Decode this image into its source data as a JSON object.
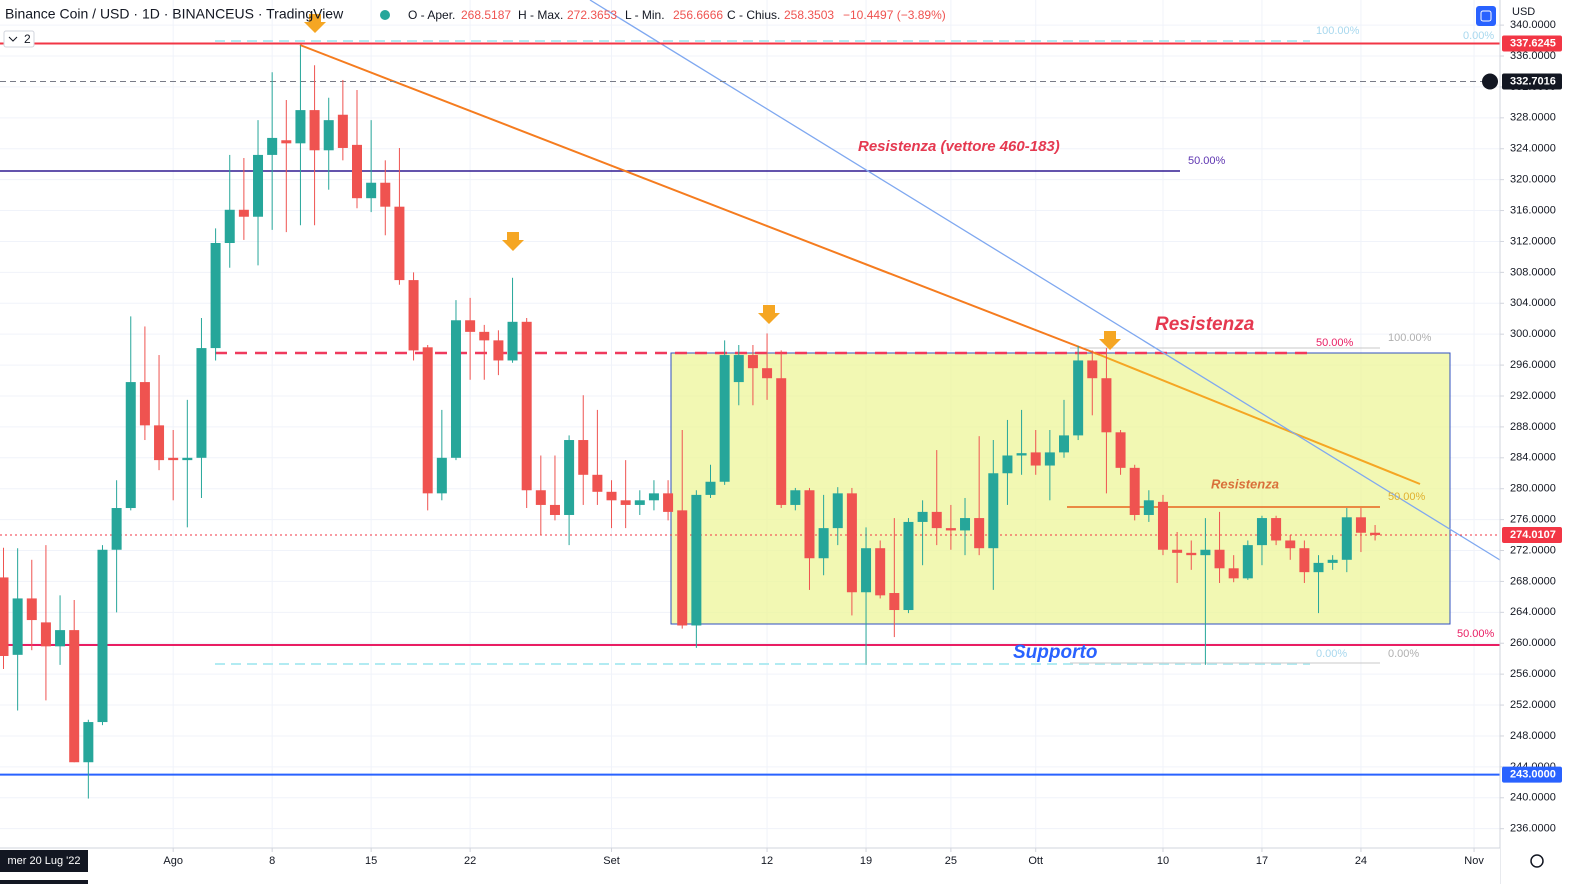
{
  "header": {
    "title": "Binance Coin / USD · 1D · BINANCEUS · TradingView",
    "open_label": "O - Aper.",
    "high_label": "H - Max.",
    "low_label": "L - Min.",
    "close_label": "C - Chius.",
    "change": "−10.4497 (−3.89%)",
    "currency": "USD",
    "indicator_count": "2",
    "crosshair_date": "mer 20 Lug '22"
  },
  "chart_data": {
    "type": "candlestick",
    "up_color": "#26a69a",
    "down_color": "#ef5350",
    "grid": true,
    "categories": [
      null,
      null,
      null,
      null,
      null,
      null,
      null,
      null,
      null,
      null,
      null,
      null,
      "Ago",
      null,
      null,
      null,
      null,
      null,
      null,
      "8",
      null,
      null,
      null,
      null,
      null,
      null,
      "15",
      null,
      null,
      null,
      null,
      null,
      null,
      "22",
      null,
      null,
      null,
      null,
      null,
      null,
      null,
      null,
      null,
      "Set",
      null,
      null,
      null,
      null,
      null,
      null,
      null,
      null,
      null,
      null,
      "12",
      null,
      null,
      null,
      null,
      null,
      null,
      "19",
      null,
      null,
      null,
      null,
      null,
      "25",
      null,
      null,
      null,
      null,
      null,
      "Ott",
      null,
      null,
      null,
      null,
      null,
      null,
      null,
      null,
      "10",
      null,
      null,
      null,
      null,
      null,
      null,
      "17",
      null,
      null,
      null,
      null,
      null,
      null,
      "24",
      null,
      null,
      null,
      null,
      null,
      null,
      null,
      "Nov"
    ],
    "open": [
      268.5187,
      258.5,
      265.8,
      262.7,
      259.6,
      261.7,
      244.6,
      249.8,
      272.1,
      277.5,
      293.8,
      288.2,
      284.0,
      283.7,
      284.0,
      298.2,
      311.8,
      316.1,
      315.2,
      323.2,
      325.1,
      324.7,
      329.0,
      323.8,
      328.4,
      324.5,
      317.6,
      319.6,
      316.5,
      307.0,
      298.3,
      279.4,
      284.0,
      301.8,
      300.3,
      299.2,
      296.6,
      301.6,
      279.8,
      277.9,
      276.6,
      286.3,
      281.8,
      279.6,
      278.5,
      277.9,
      278.5,
      279.4,
      277.2,
      262.3,
      279.2,
      280.9,
      293.8,
      297.3,
      295.6,
      294.3,
      277.9,
      279.8,
      271.0,
      274.9,
      279.4,
      266.6,
      272.3,
      266.5,
      264.3,
      275.7,
      277.0,
      274.9,
      274.6,
      276.2,
      272.3,
      282.0,
      284.3,
      284.7,
      283.0,
      284.7,
      286.9,
      296.6,
      294.3,
      287.3,
      282.7,
      276.6,
      278.3,
      272.1,
      271.7,
      271.4,
      272.1,
      269.7,
      268.4,
      272.7,
      276.2,
      273.3,
      272.3,
      269.2,
      270.4,
      270.8,
      276.3,
      274.3,
      null,
      null,
      null,
      null,
      null,
      null,
      null
    ],
    "high": [
      272.3653,
      272.3,
      270.8,
      272.7,
      266.2,
      265.6,
      250.1,
      272.7,
      281.1,
      302.3,
      301.0,
      297.3,
      287.6,
      291.5,
      302.1,
      313.7,
      323.2,
      322.8,
      327.7,
      333.9,
      330.3,
      337.4,
      334.8,
      330.6,
      332.9,
      331.6,
      327.7,
      322.5,
      324.1,
      308.0,
      298.6,
      290.2,
      304.4,
      304.7,
      301.2,
      300.5,
      307.3,
      302.1,
      284.3,
      284.3,
      286.9,
      292.1,
      290.2,
      281.1,
      283.7,
      279.8,
      281.1,
      281.1,
      287.6,
      279.8,
      283.1,
      299.2,
      298.6,
      298.6,
      300.1,
      297.9,
      280.1,
      280.1,
      279.2,
      280.2,
      280.1,
      275.0,
      273.3,
      276.2,
      276.2,
      278.5,
      285.0,
      277.9,
      278.8,
      286.8,
      286.3,
      288.9,
      290.2,
      287.6,
      287.6,
      291.5,
      298.5,
      297.9,
      298.2,
      287.6,
      283.1,
      279.8,
      279.2,
      274.4,
      273.3,
      276.2,
      277.0,
      271.4,
      273.3,
      276.5,
      276.5,
      274.0,
      273.3,
      271.4,
      271.4,
      277.5,
      277.5,
      275.3,
      null,
      null,
      null,
      null,
      null,
      null,
      null
    ],
    "low": [
      256.6666,
      251.3,
      259.1,
      252.6,
      257.2,
      244.6,
      239.9,
      249.4,
      264.0,
      277.2,
      286.3,
      282.4,
      278.5,
      275.0,
      278.8,
      296.6,
      308.6,
      312.2,
      308.9,
      313.5,
      313.2,
      314.1,
      314.1,
      318.7,
      322.5,
      316.3,
      315.8,
      312.8,
      306.4,
      296.6,
      277.2,
      278.5,
      283.7,
      294.1,
      294.1,
      294.7,
      296.3,
      277.5,
      274.0,
      275.9,
      272.7,
      277.9,
      277.9,
      274.9,
      274.9,
      276.6,
      277.2,
      275.9,
      261.9,
      259.4,
      278.8,
      280.5,
      290.8,
      290.8,
      291.5,
      277.5,
      277.2,
      266.9,
      268.8,
      272.7,
      263.6,
      257.2,
      265.8,
      260.8,
      263.9,
      270.1,
      272.7,
      272.1,
      271.4,
      271.4,
      266.9,
      277.9,
      281.8,
      281.8,
      278.5,
      284.0,
      286.3,
      289.5,
      279.4,
      281.8,
      275.9,
      275.7,
      271.4,
      267.8,
      269.5,
      257.2,
      267.8,
      267.9,
      268.2,
      270.1,
      272.7,
      270.8,
      267.8,
      263.9,
      269.5,
      269.2,
      271.8,
      273.3,
      null,
      null,
      null,
      null,
      null,
      null,
      null
    ],
    "close": [
      258.3503,
      265.8,
      263.0,
      259.6,
      261.7,
      244.6,
      249.8,
      272.1,
      277.5,
      293.8,
      288.2,
      283.7,
      283.7,
      284.0,
      298.2,
      311.8,
      316.1,
      315.2,
      323.2,
      325.4,
      324.7,
      329.0,
      323.8,
      327.7,
      324.1,
      317.6,
      319.6,
      316.5,
      307.0,
      297.9,
      279.4,
      284.0,
      301.8,
      300.3,
      299.2,
      296.6,
      301.6,
      279.8,
      277.9,
      276.6,
      286.3,
      281.8,
      279.6,
      278.5,
      277.9,
      278.5,
      279.4,
      277.0,
      262.3,
      279.2,
      280.9,
      297.3,
      297.3,
      295.6,
      294.3,
      277.9,
      279.8,
      271.0,
      274.9,
      279.4,
      266.6,
      272.3,
      266.2,
      264.3,
      275.7,
      277.0,
      274.9,
      274.6,
      276.2,
      272.3,
      282.0,
      284.3,
      284.6,
      283.0,
      284.7,
      286.9,
      296.6,
      294.3,
      287.3,
      282.7,
      276.6,
      278.5,
      272.1,
      271.7,
      271.4,
      272.1,
      269.7,
      268.4,
      272.7,
      276.2,
      273.3,
      272.3,
      269.2,
      270.4,
      270.8,
      276.3,
      274.3,
      274.0,
      null,
      null,
      null,
      null,
      null,
      null,
      null
    ],
    "ylim": [
      233.5,
      343.25
    ],
    "yticks": [
      {
        "value": 236,
        "label": "236.0000"
      },
      {
        "value": 240,
        "label": "240.0000"
      },
      {
        "value": 244,
        "label": "244.0000"
      },
      {
        "value": 248,
        "label": "248.0000"
      },
      {
        "value": 252,
        "label": "252.0000"
      },
      {
        "value": 256,
        "label": "256.0000"
      },
      {
        "value": 260,
        "label": "260.0000"
      },
      {
        "value": 264,
        "label": "264.0000"
      },
      {
        "value": 268,
        "label": "268.0000"
      },
      {
        "value": 272,
        "label": "272.0000"
      },
      {
        "value": 276,
        "label": "276.0000"
      },
      {
        "value": 280,
        "label": "280.0000"
      },
      {
        "value": 284,
        "label": "284.0000"
      },
      {
        "value": 288,
        "label": "288.0000"
      },
      {
        "value": 292,
        "label": "292.0000"
      },
      {
        "value": 296,
        "label": "296.0000"
      },
      {
        "value": 300,
        "label": "300.0000"
      },
      {
        "value": 304,
        "label": "304.0000"
      },
      {
        "value": 308,
        "label": "308.0000"
      },
      {
        "value": 312,
        "label": "312.0000"
      },
      {
        "value": 316,
        "label": "316.0000"
      },
      {
        "value": 320,
        "label": "320.0000"
      },
      {
        "value": 324,
        "label": "324.0000"
      },
      {
        "value": 328,
        "label": "328.0000"
      },
      {
        "value": 332,
        "label": "332.0000"
      },
      {
        "value": 336,
        "label": "336.0000"
      },
      {
        "value": 340,
        "label": "340.0000"
      }
    ],
    "price_levels": {
      "values": [
        337.6245,
        332.7016,
        274.0107,
        243
      ],
      "value_labels": [
        "337.6245",
        "332.7016",
        "274.0107",
        "243.0000"
      ],
      "colors": [
        "#f23645",
        "#131722",
        "#f23645",
        "#2962ff"
      ]
    },
    "annotations": [
      "Resistenza (vettore 460-183)",
      "50.00%",
      "100.00%",
      "0.00%",
      "Resistenza",
      "50.00%",
      "100.00%",
      "Resistenza",
      "50.00%",
      "Supporto",
      "0.00%",
      "0.00%",
      "50.00%"
    ]
  }
}
